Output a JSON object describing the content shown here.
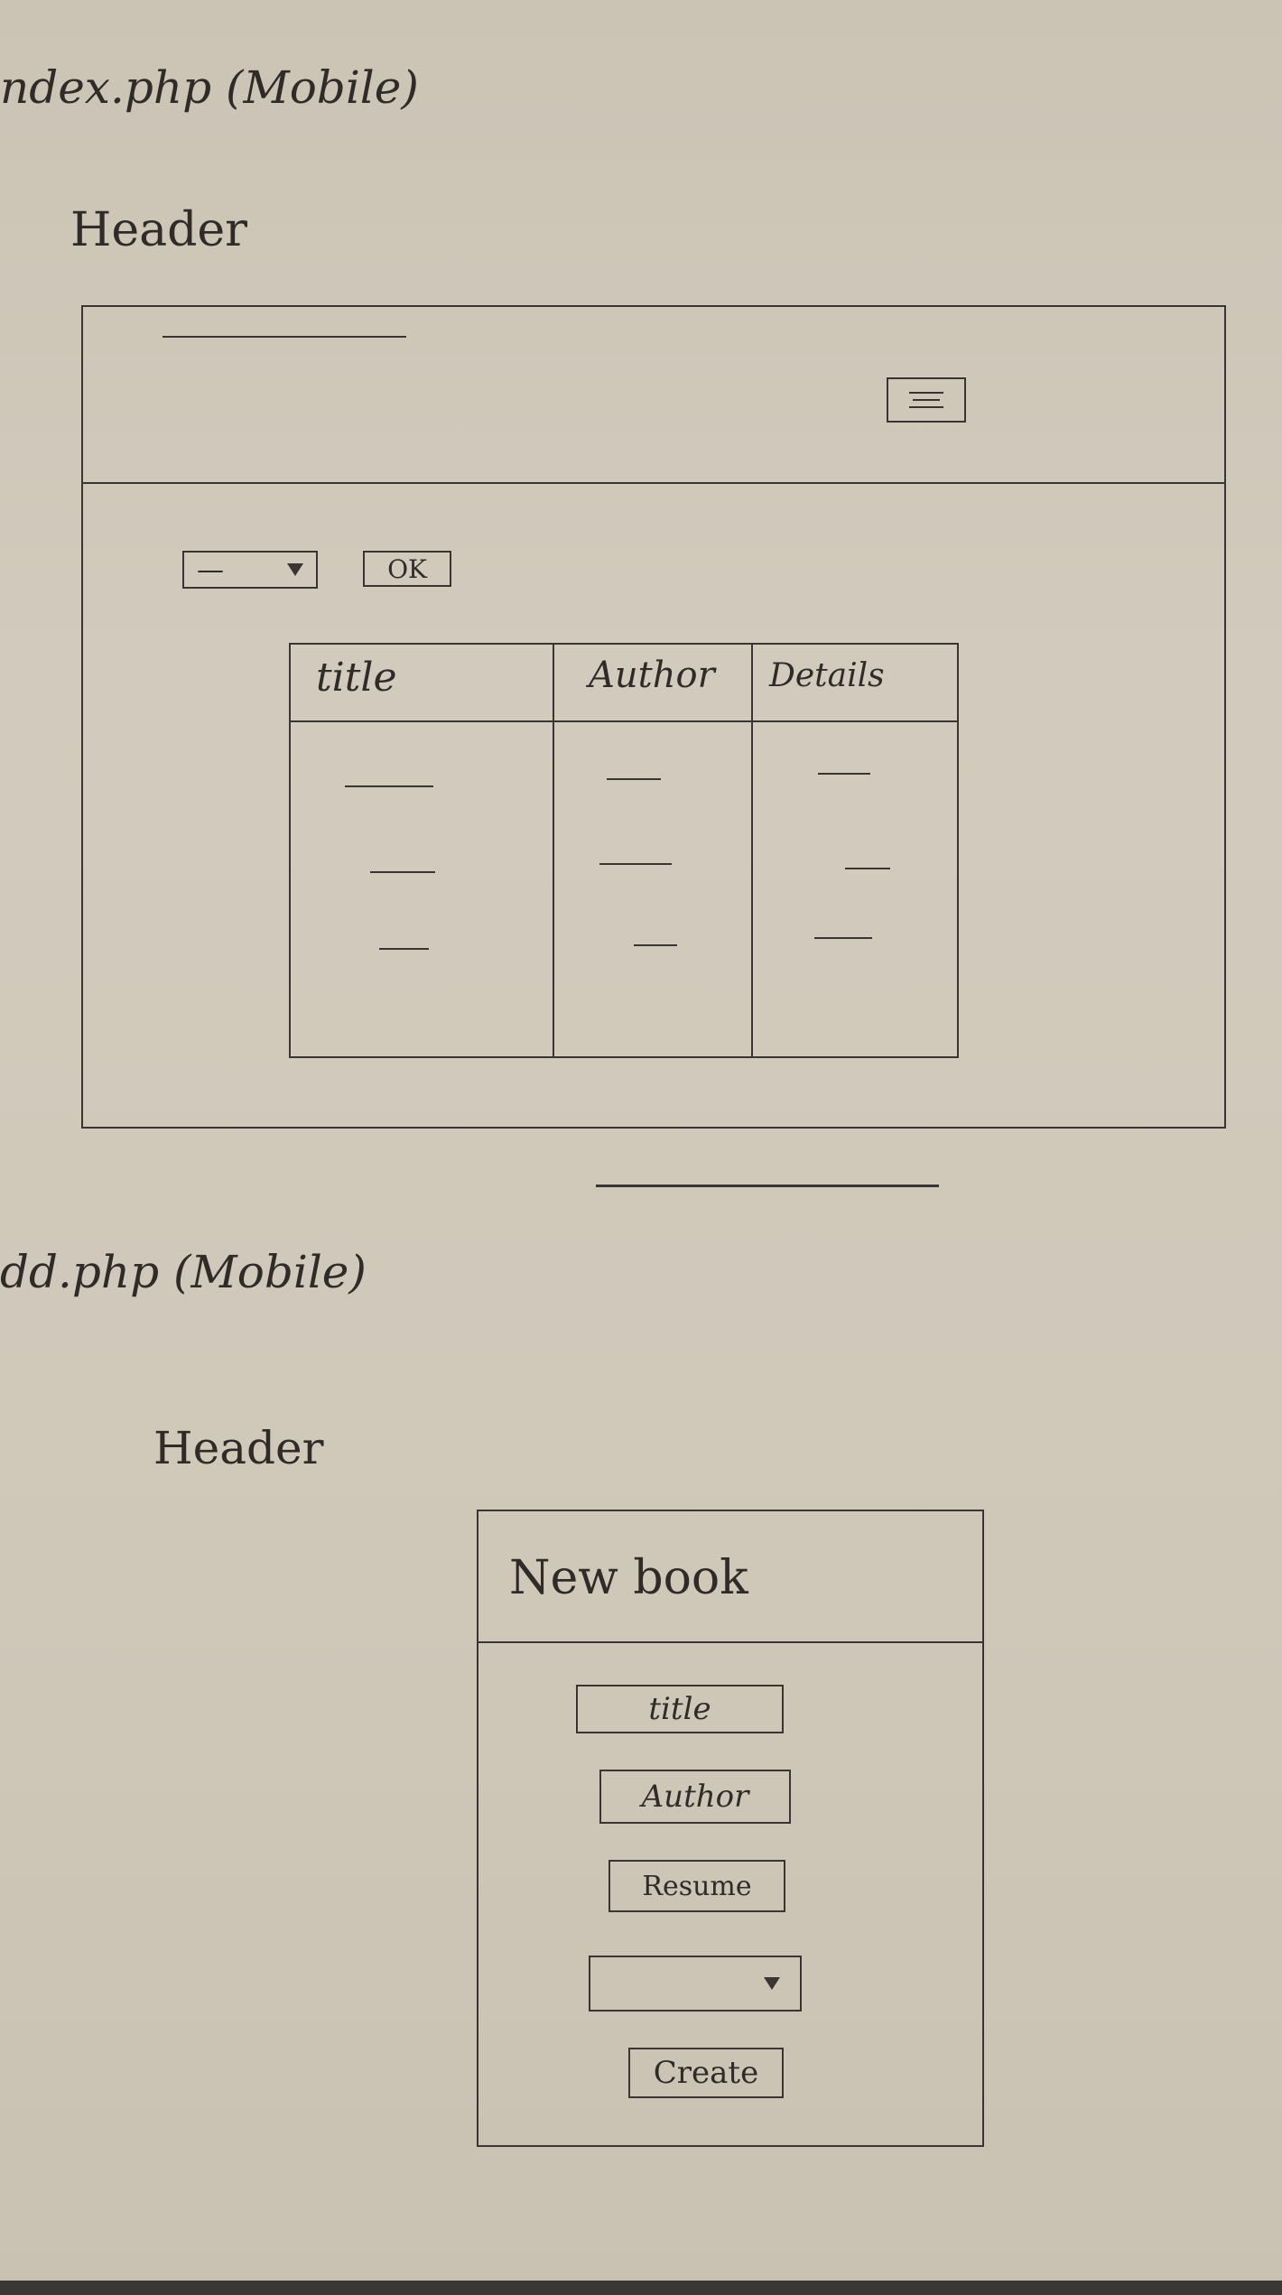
{
  "sketch1": {
    "page_label": "ndex.php (Mobile)",
    "section_label": "Header",
    "ok_button": "OK",
    "select_value": "—",
    "table": {
      "headers": [
        "title",
        "Author",
        "Details"
      ],
      "rows": [
        [
          "—",
          "—",
          "—"
        ],
        [
          "—",
          "—",
          "—"
        ],
        [
          "—",
          "—",
          "—"
        ]
      ]
    }
  },
  "sketch2": {
    "page_label": "dd.php (Mobile)",
    "section_label": "Header",
    "form_title": "New book",
    "fields": {
      "title": "title",
      "author": "Author",
      "resume": "Resume",
      "create_button": "Create"
    }
  },
  "icons": [
    "menu-icon",
    "dropdown-arrow-icon"
  ]
}
